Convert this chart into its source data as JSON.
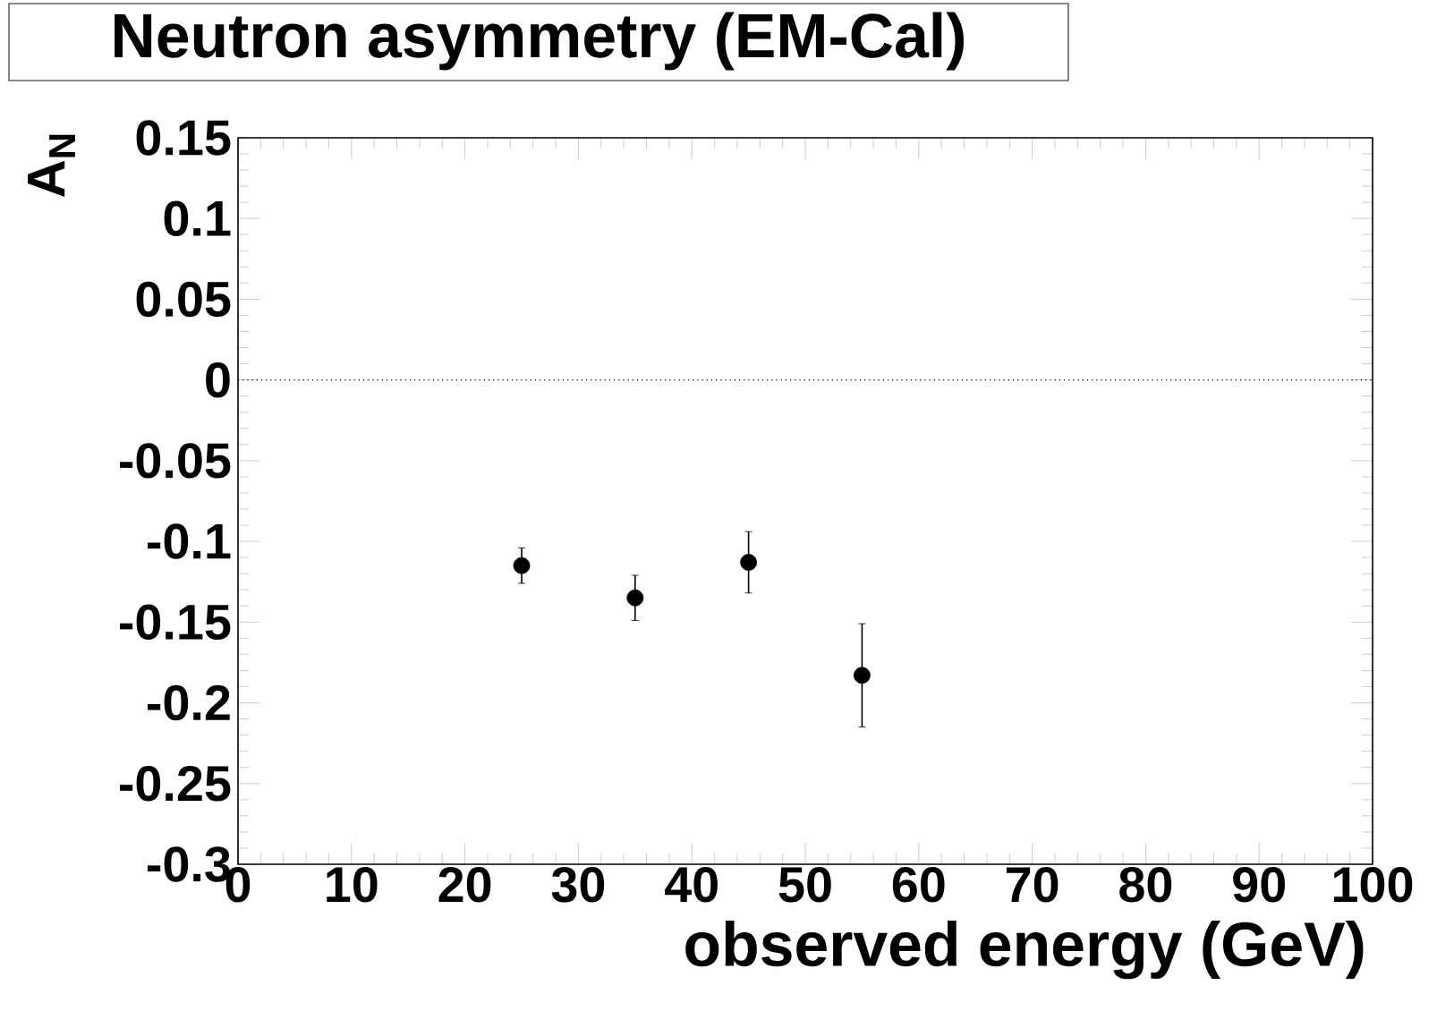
{
  "chart_data": {
    "type": "scatter",
    "title": "Neutron asymmetry (EM-Cal)",
    "xlabel": "observed energy (GeV)",
    "ylabel": "A$_{N}$",
    "x": [
      25,
      35,
      45,
      55
    ],
    "values": [
      -0.115,
      -0.135,
      -0.113,
      -0.183
    ],
    "errors": [
      0.011,
      0.014,
      0.019,
      0.032
    ],
    "color": "#000000",
    "marker": "circle",
    "xlim": [
      0,
      100
    ],
    "xticks": [
      0,
      10,
      20,
      30,
      40,
      50,
      60,
      70,
      80,
      90,
      100
    ],
    "ylim": [
      -0.3,
      0.15
    ],
    "yticks": [
      -0.3,
      -0.25,
      -0.2,
      -0.15,
      -0.1,
      -0.05,
      0,
      0.05,
      0.1,
      0.15
    ],
    "ref_lines": [
      {
        "axis": "y",
        "value": 0,
        "line_style": "dotted",
        "color": "#000000"
      }
    ],
    "grid": false
  }
}
